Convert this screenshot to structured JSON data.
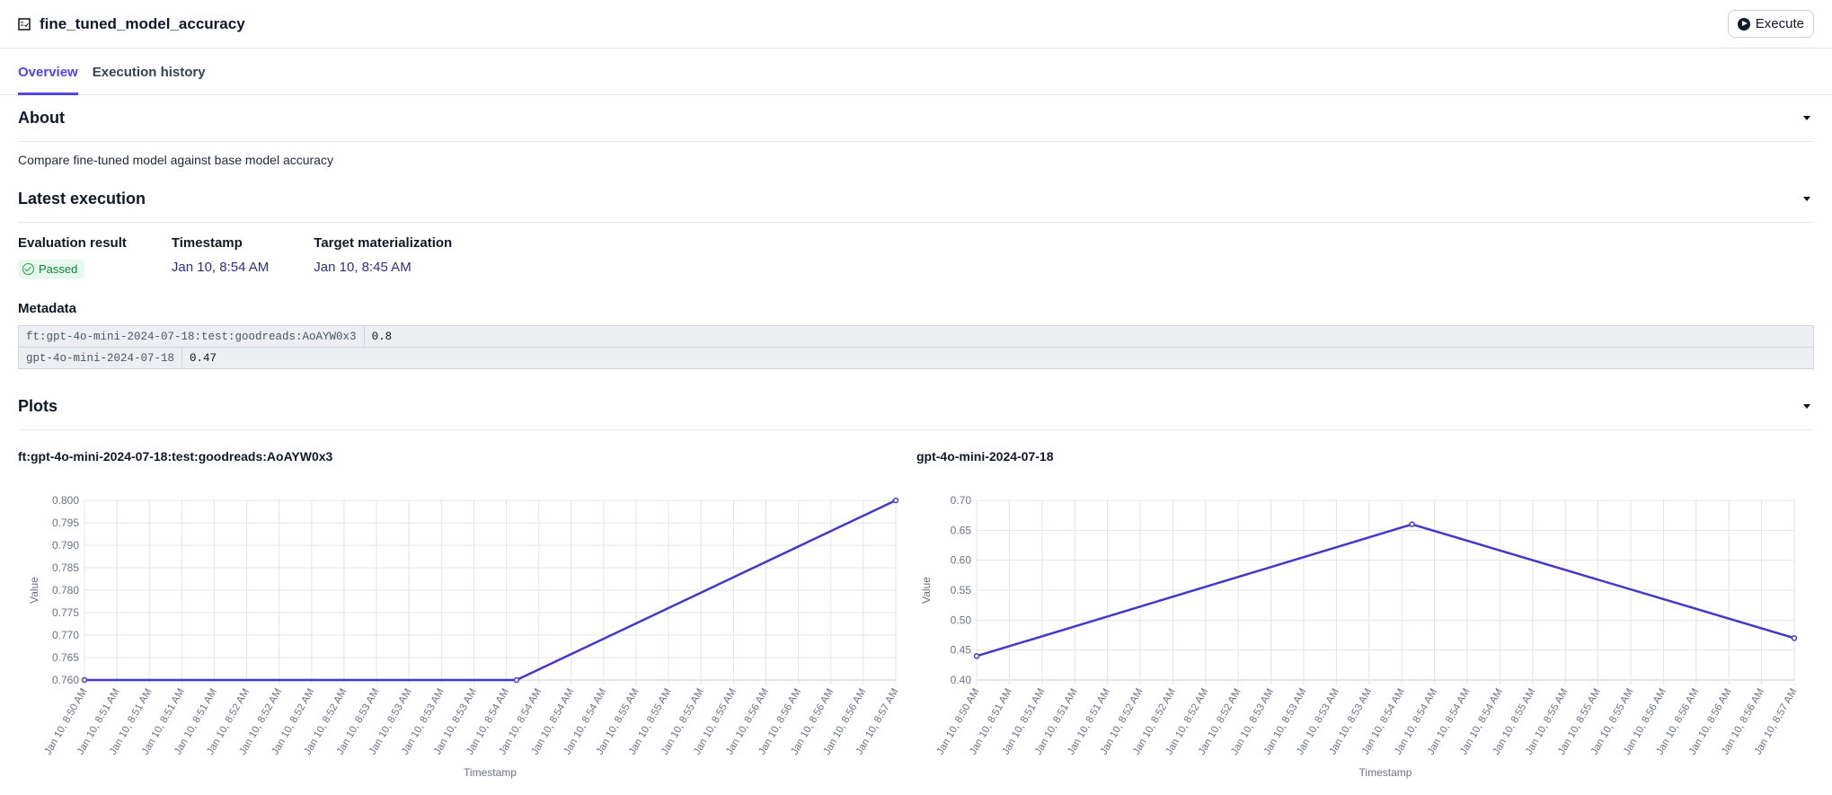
{
  "header": {
    "title": "fine_tuned_model_accuracy",
    "icon": "report-icon",
    "execute_label": "Execute"
  },
  "tabs": [
    {
      "label": "Overview",
      "active": true
    },
    {
      "label": "Execution history",
      "active": false
    }
  ],
  "about": {
    "heading": "About",
    "description": "Compare fine-tuned model against base model accuracy"
  },
  "latest": {
    "heading": "Latest execution",
    "evaluation_label": "Evaluation result",
    "evaluation_value": "Passed",
    "timestamp_label": "Timestamp",
    "timestamp_value": "Jan 10, 8:54 AM",
    "target_label": "Target materialization",
    "target_value": "Jan 10, 8:45 AM"
  },
  "metadata": {
    "heading": "Metadata",
    "rows": [
      {
        "key": "ft:gpt-4o-mini-2024-07-18:test:goodreads:AoAYW0x3",
        "value": "0.8"
      },
      {
        "key": "gpt-4o-mini-2024-07-18",
        "value": "0.47"
      }
    ]
  },
  "plots": {
    "heading": "Plots"
  },
  "colors": {
    "accent": "#4f46e5",
    "line": "#4338ca",
    "passed_bg": "#e7f8ee",
    "passed_fg": "#15803d"
  },
  "chart_data": [
    {
      "type": "line",
      "title": "ft:gpt-4o-mini-2024-07-18:test:goodreads:AoAYW0x3",
      "xlabel": "Timestamp",
      "ylabel": "Value",
      "ylim": [
        0.76,
        0.8
      ],
      "yticks": [
        "0.760",
        "0.765",
        "0.770",
        "0.775",
        "0.780",
        "0.785",
        "0.790",
        "0.795",
        "0.800"
      ],
      "xtick_labels": [
        "Jan 10, 8:50 AM",
        "Jan 10, 8:51 AM",
        "Jan 10, 8:51 AM",
        "Jan 10, 8:51 AM",
        "Jan 10, 8:51 AM",
        "Jan 10, 8:52 AM",
        "Jan 10, 8:52 AM",
        "Jan 10, 8:52 AM",
        "Jan 10, 8:52 AM",
        "Jan 10, 8:53 AM",
        "Jan 10, 8:53 AM",
        "Jan 10, 8:53 AM",
        "Jan 10, 8:53 AM",
        "Jan 10, 8:54 AM",
        "Jan 10, 8:54 AM",
        "Jan 10, 8:54 AM",
        "Jan 10, 8:54 AM",
        "Jan 10, 8:55 AM",
        "Jan 10, 8:55 AM",
        "Jan 10, 8:55 AM",
        "Jan 10, 8:55 AM",
        "Jan 10, 8:56 AM",
        "Jan 10, 8:56 AM",
        "Jan 10, 8:56 AM",
        "Jan 10, 8:56 AM",
        "Jan 10, 8:57 AM"
      ],
      "grid": true,
      "points": [
        {
          "x": "08:50:20",
          "y": 0.76
        },
        {
          "x": "08:53:53",
          "y": 0.76
        },
        {
          "x": "08:57:00",
          "y": 0.8
        }
      ]
    },
    {
      "type": "line",
      "title": "gpt-4o-mini-2024-07-18",
      "xlabel": "Timestamp",
      "ylabel": "Value",
      "ylim": [
        0.4,
        0.7
      ],
      "yticks": [
        "0.40",
        "0.45",
        "0.50",
        "0.55",
        "0.60",
        "0.65",
        "0.70"
      ],
      "xtick_labels": [
        "Jan 10, 8:50 AM",
        "Jan 10, 8:51 AM",
        "Jan 10, 8:51 AM",
        "Jan 10, 8:51 AM",
        "Jan 10, 8:51 AM",
        "Jan 10, 8:52 AM",
        "Jan 10, 8:52 AM",
        "Jan 10, 8:52 AM",
        "Jan 10, 8:52 AM",
        "Jan 10, 8:53 AM",
        "Jan 10, 8:53 AM",
        "Jan 10, 8:53 AM",
        "Jan 10, 8:53 AM",
        "Jan 10, 8:54 AM",
        "Jan 10, 8:54 AM",
        "Jan 10, 8:54 AM",
        "Jan 10, 8:54 AM",
        "Jan 10, 8:55 AM",
        "Jan 10, 8:55 AM",
        "Jan 10, 8:55 AM",
        "Jan 10, 8:55 AM",
        "Jan 10, 8:56 AM",
        "Jan 10, 8:56 AM",
        "Jan 10, 8:56 AM",
        "Jan 10, 8:56 AM",
        "Jan 10, 8:57 AM"
      ],
      "grid": true,
      "points": [
        {
          "x": "08:50:20",
          "y": 0.44
        },
        {
          "x": "08:53:53",
          "y": 0.66
        },
        {
          "x": "08:57:00",
          "y": 0.47
        }
      ]
    }
  ]
}
